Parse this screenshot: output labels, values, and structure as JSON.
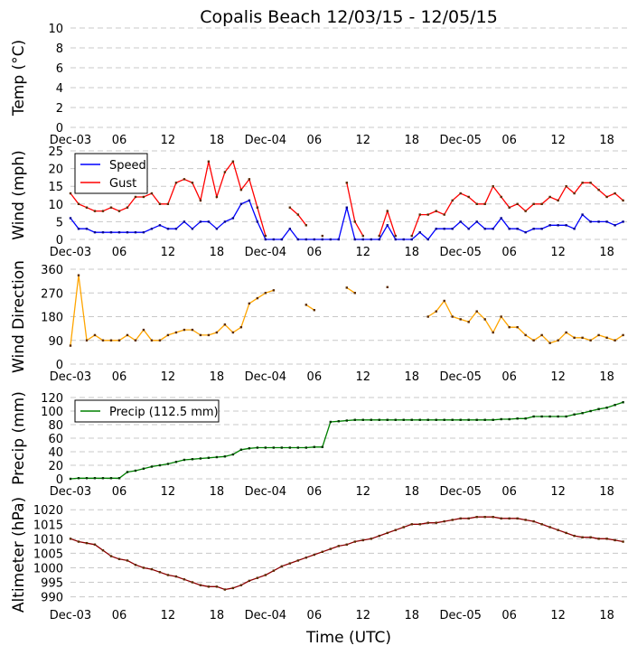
{
  "chart_data": {
    "type": "line",
    "title": "Copalis Beach 12/03/15 - 12/05/15",
    "xlabel": "Time (UTC)",
    "x_unit": "hours since Dec-03 00:00 UTC",
    "xlim": [
      0,
      68.6
    ],
    "x_ticks": [
      0,
      6,
      12,
      18,
      24,
      30,
      36,
      42,
      48,
      54,
      60,
      66
    ],
    "x_tick_labels": [
      "Dec-03",
      "06",
      "12",
      "18",
      "Dec-04",
      "06",
      "12",
      "18",
      "Dec-05",
      "06",
      "12",
      "18"
    ],
    "grid": true,
    "panels": [
      {
        "id": "temp",
        "ylabel": "Temp (°C)",
        "ylim": [
          0,
          10
        ],
        "yticks": [
          0,
          2,
          4,
          6,
          8,
          10
        ],
        "series": []
      },
      {
        "id": "wind",
        "ylabel": "Wind (mph)",
        "ylim": [
          0,
          25
        ],
        "yticks": [
          0,
          5,
          10,
          15,
          20,
          25
        ],
        "legend": "top-left",
        "series": [
          {
            "name": "Speed",
            "color": "#0000ff",
            "values": [
              6,
              3,
              3,
              2,
              2,
              2,
              2,
              2,
              2,
              2,
              3,
              4,
              3,
              3,
              5,
              3,
              5,
              5,
              3,
              5,
              6,
              10,
              11,
              5,
              0,
              0,
              0,
              3,
              0,
              0,
              0,
              0,
              0,
              0,
              9,
              0,
              0,
              0,
              0,
              4,
              0,
              0,
              0,
              2,
              0,
              3,
              3,
              3,
              5,
              3,
              5,
              3,
              3,
              6,
              3,
              3,
              2,
              3,
              3,
              4,
              4,
              4,
              3,
              7,
              5,
              5,
              5,
              4,
              5
            ]
          },
          {
            "name": "Gust",
            "color": "#ff0000",
            "values": [
              13,
              10,
              9,
              8,
              8,
              9,
              8,
              9,
              12,
              12,
              13,
              10,
              10,
              16,
              17,
              16,
              11,
              22,
              12,
              19,
              22,
              14,
              17,
              9,
              1,
              null,
              null,
              9,
              7,
              4,
              null,
              1,
              null,
              null,
              16,
              5,
              1,
              null,
              1,
              8,
              1,
              null,
              1,
              7,
              7,
              8,
              7,
              11,
              13,
              12,
              10,
              10,
              15,
              12,
              9,
              10,
              8,
              10,
              10,
              12,
              11,
              15,
              13,
              16,
              16,
              14,
              12,
              13,
              11
            ]
          }
        ]
      },
      {
        "id": "direction",
        "ylabel": "Wind Direction",
        "ylim": [
          0,
          360
        ],
        "yticks": [
          0,
          90,
          180,
          270,
          360
        ],
        "series": [
          {
            "name": "Direction",
            "color": "#ffa500",
            "values": [
              70,
              337,
              90,
              110,
              90,
              90,
              90,
              110,
              90,
              130,
              90,
              90,
              110,
              120,
              130,
              130,
              110,
              110,
              120,
              150,
              120,
              140,
              230,
              250,
              270,
              280,
              null,
              null,
              null,
              225,
              205,
              null,
              null,
              null,
              290,
              270,
              null,
              null,
              null,
              292,
              null,
              null,
              null,
              null,
              180,
              200,
              240,
              180,
              170,
              160,
              200,
              170,
              120,
              180,
              140,
              140,
              110,
              90,
              110,
              80,
              90,
              120,
              100,
              100,
              90,
              110,
              100,
              90,
              110
            ]
          }
        ]
      },
      {
        "id": "precip",
        "ylabel": "Precip (mm)",
        "ylim": [
          0,
          120
        ],
        "yticks": [
          0,
          20,
          40,
          60,
          80,
          100,
          120
        ],
        "legend": "top-left",
        "series": [
          {
            "name": "Precip (112.5 mm)",
            "color": "#008000",
            "values": [
              0,
              1,
              1,
              1,
              1,
              1,
              1,
              10,
              12,
              15,
              18,
              20,
              22,
              25,
              28,
              29,
              30,
              31,
              32,
              33,
              36,
              43,
              45,
              46,
              46,
              46,
              46,
              46,
              46,
              46,
              47,
              47,
              84,
              85,
              86,
              87,
              87,
              87,
              87,
              87,
              87,
              87,
              87,
              87,
              87,
              87,
              87,
              87,
              87,
              87,
              87,
              87,
              87,
              88,
              88,
              89,
              89,
              92,
              92,
              92,
              92,
              92,
              95,
              97,
              100,
              103,
              105,
              109,
              113
            ]
          }
        ]
      },
      {
        "id": "altimeter",
        "ylabel": "Altimeter (hPa)",
        "ylim": [
          988,
          1021
        ],
        "yticks": [
          990,
          995,
          1000,
          1005,
          1010,
          1015,
          1020
        ],
        "series": [
          {
            "name": "Altimeter",
            "color": "#8b0000",
            "values": [
              1010,
              1009,
              1008.5,
              1008,
              1006,
              1004,
              1003,
              1002.5,
              1001,
              1000,
              999.5,
              998.5,
              997.5,
              997,
              996,
              995,
              994,
              993.5,
              993.5,
              992.5,
              993,
              994,
              995.5,
              996.5,
              997.5,
              999,
              1000.5,
              1001.5,
              1002.5,
              1003.5,
              1004.5,
              1005.5,
              1006.5,
              1007.5,
              1008,
              1009,
              1009.5,
              1010,
              1011,
              1012,
              1013,
              1014,
              1015,
              1015,
              1015.5,
              1015.5,
              1016,
              1016.5,
              1017,
              1017,
              1017.5,
              1017.5,
              1017.5,
              1017,
              1017,
              1017,
              1016.5,
              1016,
              1015,
              1014,
              1013,
              1012,
              1011,
              1010.5,
              1010.5,
              1010,
              1010,
              1009.5,
              1009
            ]
          }
        ]
      }
    ]
  }
}
